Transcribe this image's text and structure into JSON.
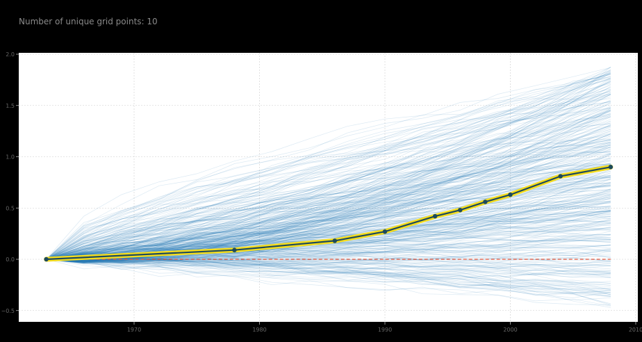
{
  "header": {
    "title": "Number of unique grid points: 10"
  },
  "colors": {
    "background": "#000000",
    "plot_bg": "#ffffff",
    "trajectory": "#1f77b4",
    "mean_halo": "#f5dd1e",
    "mean_line": "#1d4a5c",
    "baseline": "#e2543a",
    "grid": "#cccccc",
    "tick_text": "#666666"
  },
  "chart_data": {
    "type": "line",
    "title": "Number of unique grid points: 10",
    "xlabel": "",
    "ylabel": "",
    "xlim": [
      1955.9,
      2010.2
    ],
    "ylim": [
      -0.6,
      2.02
    ],
    "grid": true,
    "legend": null,
    "xticks": [
      1970,
      1980,
      1990,
      2000,
      2010
    ],
    "xtick_labels": [
      "1970",
      "1980",
      "1990",
      "2000",
      "2010"
    ],
    "yticks": [
      -0.5,
      0.0,
      0.5,
      1.0,
      1.5,
      2.0
    ],
    "ytick_labels": [
      "−0.5",
      "0.0",
      "0.5",
      "1.0",
      "1.5",
      "2.0"
    ],
    "series": [
      {
        "name": "mean trajectory",
        "style": "dark line with yellow halo and markers",
        "x": [
          1963,
          1978,
          1986,
          1990,
          1994,
          1996,
          1998,
          2000,
          2004,
          2008
        ],
        "values": [
          0.0,
          0.09,
          0.18,
          0.27,
          0.42,
          0.48,
          0.56,
          0.63,
          0.81,
          0.9
        ]
      },
      {
        "name": "zero baseline",
        "style": "red dashed",
        "x": [
          1963,
          2008
        ],
        "values": [
          0.0,
          0.0
        ]
      }
    ],
    "background_trajectories": {
      "description": "hundreds of faint blue individual trajectories starting at 0 in 1963, spreading to roughly -0.5..1.9 by 2008",
      "count_approx": 400,
      "x_start": 1963,
      "x_end": 2008,
      "y_range_end": [
        -0.45,
        1.9
      ]
    }
  }
}
